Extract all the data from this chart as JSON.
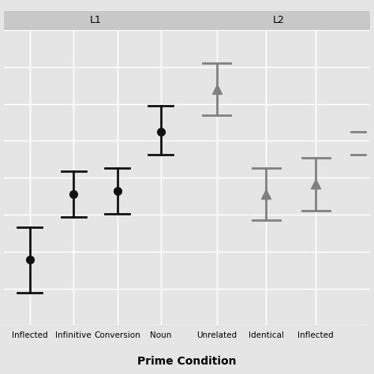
{
  "L1": {
    "categories": [
      "Inflected",
      "Infinitive",
      "Conversion",
      "Noun"
    ],
    "means": [
      -3.5,
      -1.5,
      -1.4,
      0.4
    ],
    "ci_upper": [
      -2.5,
      -0.8,
      -0.7,
      1.2
    ],
    "ci_lower": [
      -4.5,
      -2.2,
      -2.1,
      -0.3
    ],
    "marker": "o",
    "color": "#111111"
  },
  "L2": {
    "categories": [
      "Unrelated",
      "Identical",
      "Inflected"
    ],
    "means": [
      1.7,
      -1.5,
      -1.2
    ],
    "ci_upper": [
      2.5,
      -0.7,
      -0.4
    ],
    "ci_lower": [
      0.9,
      -2.3,
      -2.0
    ],
    "marker": "^",
    "color": "#808080"
  },
  "L2_partial": {
    "ci_upper_partial": 0.4,
    "ci_lower_partial": -0.3
  },
  "ylim": [
    -5.5,
    3.5
  ],
  "xlabel": "Prime Condition",
  "panel_bg": "#e5e5e5",
  "grid_color": "#ffffff",
  "label_strip_color": "#c8c8c8",
  "fig_bg": "#e5e5e5"
}
